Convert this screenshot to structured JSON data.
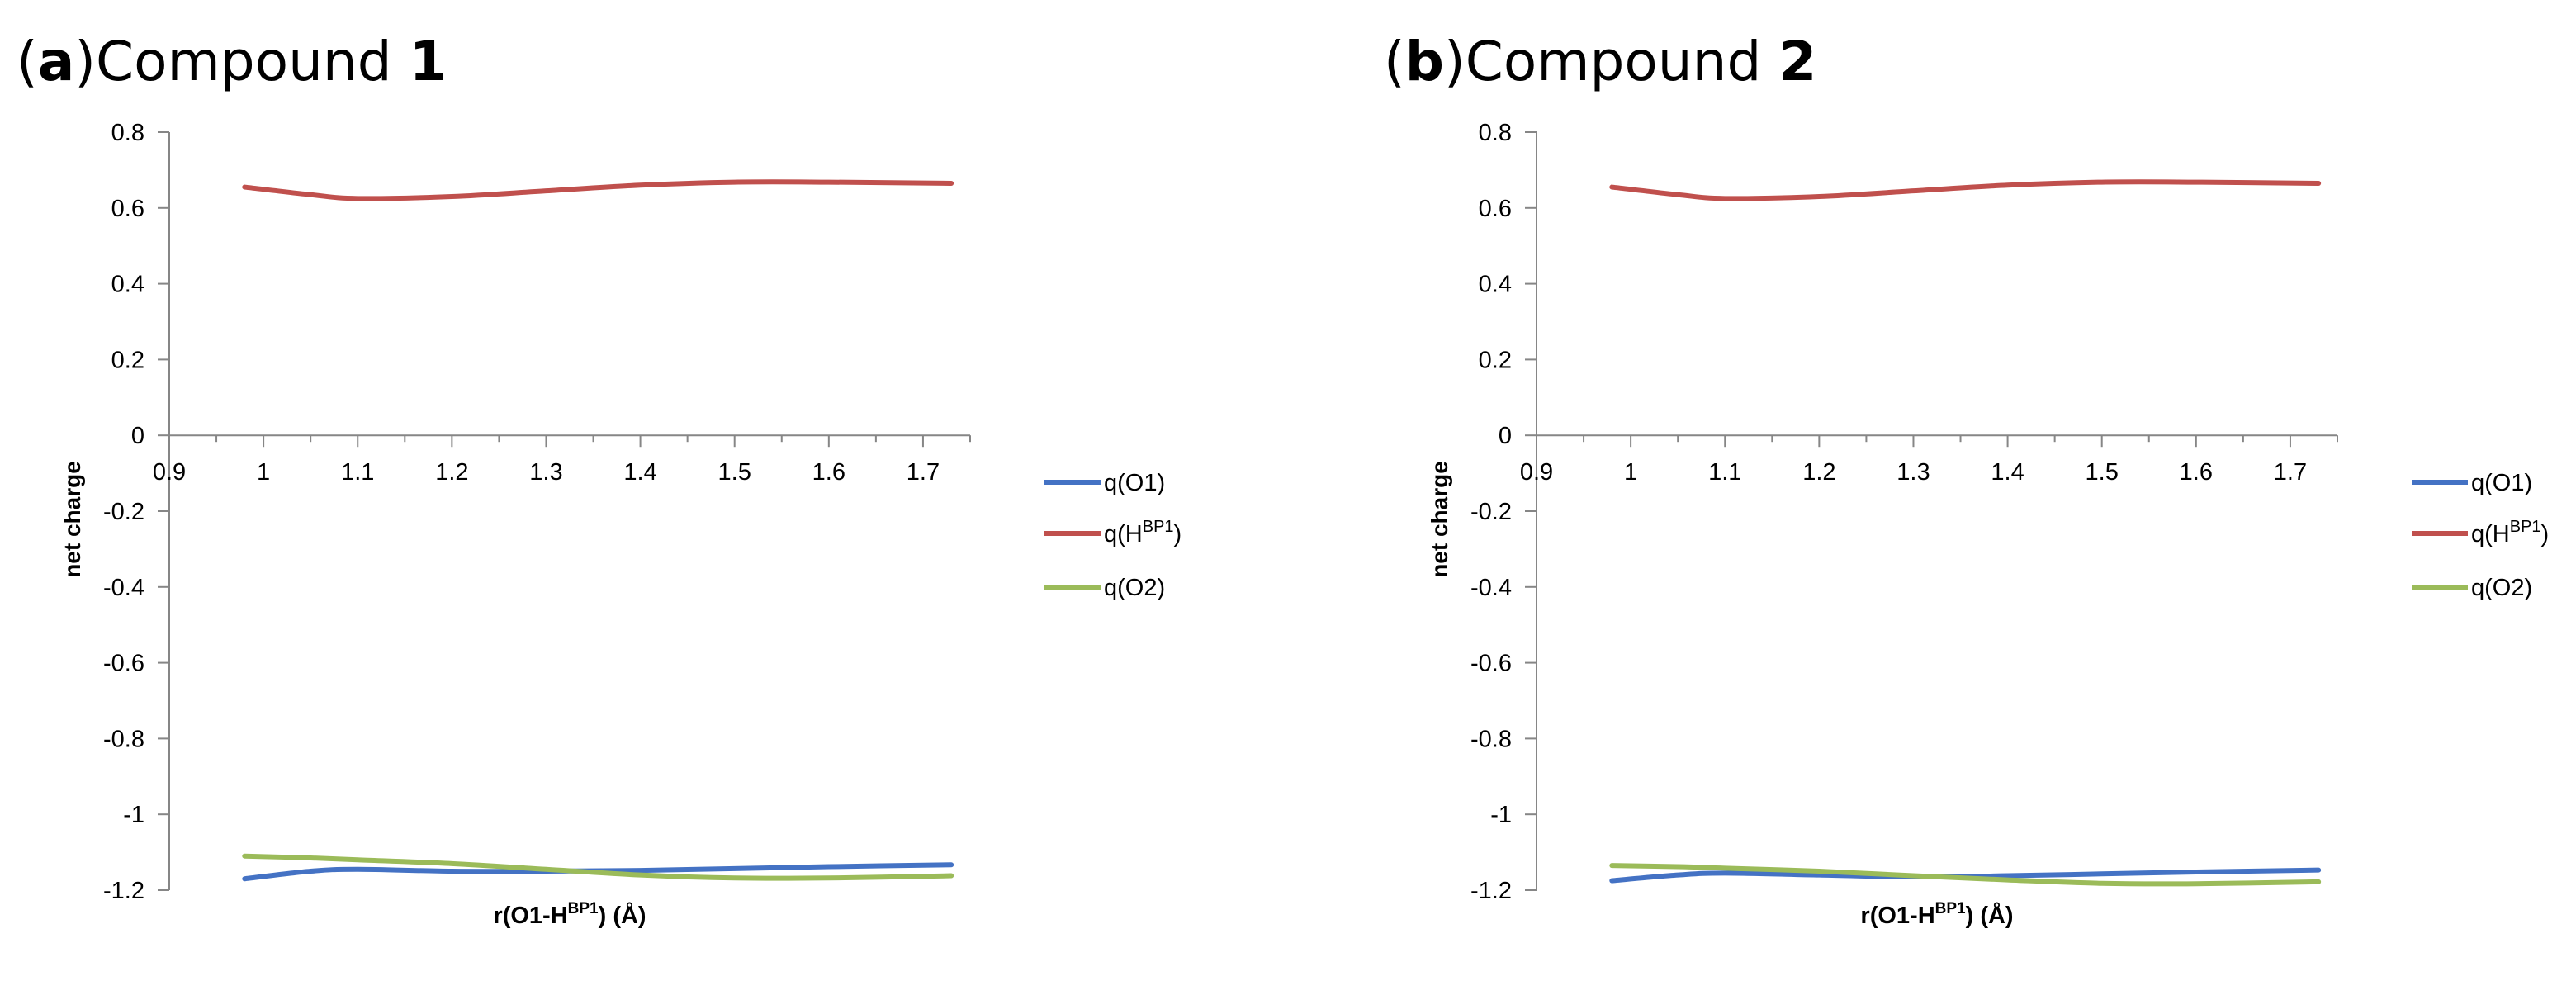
{
  "panels": [
    {
      "label": "a",
      "title_text": "Compound",
      "compound_number": "1"
    },
    {
      "label": "b",
      "title_text": "Compound",
      "compound_number": "2"
    }
  ],
  "chart_data": [
    {
      "type": "line",
      "title": "(a)Compound 1",
      "xlabel": "r(O1-H",
      "xlabel_sup": "BP1",
      "xlabel_tail": ") (Å)",
      "ylabel": "net charge",
      "xlim": [
        0.9,
        1.75
      ],
      "ylim": [
        -1.2,
        0.8
      ],
      "x_ticks": [
        0.9,
        1,
        1.1,
        1.2,
        1.3,
        1.4,
        1.5,
        1.6,
        1.7
      ],
      "x_tick_labels": [
        "0.9",
        "1",
        "1.1",
        "1.2",
        "1.3",
        "1.4",
        "1.5",
        "1.6",
        "1.7"
      ],
      "y_ticks": [
        0.8,
        0.6,
        0.4,
        0.2,
        0,
        -0.2,
        -0.4,
        -0.6,
        -0.8,
        -1,
        -1.2
      ],
      "y_tick_labels": [
        "0.8",
        "0.6",
        "0.4",
        "0.2",
        "0",
        "-0.2",
        "-0.4",
        "-0.6",
        "-0.8",
        "-1",
        "-1.2"
      ],
      "legend_position": "right",
      "series": [
        {
          "name": "q(O1)",
          "name_main": "q(O1",
          "name_sup": "",
          "name_tail": ")",
          "color": "#4472C4",
          "x": [
            0.98,
            1.05,
            1.1,
            1.2,
            1.3,
            1.4,
            1.5,
            1.6,
            1.73
          ],
          "y": [
            -1.17,
            -1.15,
            -1.145,
            -1.15,
            -1.15,
            -1.148,
            -1.143,
            -1.138,
            -1.133
          ]
        },
        {
          "name": "q(HBP1)",
          "name_main": "q(H",
          "name_sup": "BP1",
          "name_tail": ")",
          "color": "#C0504D",
          "x": [
            0.98,
            1.05,
            1.1,
            1.2,
            1.3,
            1.4,
            1.5,
            1.6,
            1.73
          ],
          "y": [
            0.655,
            0.635,
            0.625,
            0.63,
            0.645,
            0.66,
            0.668,
            0.668,
            0.665
          ]
        },
        {
          "name": "q(O2)",
          "name_main": "q(O2",
          "name_sup": "",
          "name_tail": ")",
          "color": "#9BBB59",
          "x": [
            0.98,
            1.05,
            1.1,
            1.2,
            1.3,
            1.4,
            1.5,
            1.6,
            1.73
          ],
          "y": [
            -1.11,
            -1.115,
            -1.12,
            -1.13,
            -1.145,
            -1.16,
            -1.168,
            -1.168,
            -1.162
          ]
        }
      ]
    },
    {
      "type": "line",
      "title": "(b)Compound 2",
      "xlabel": "r(O1-H",
      "xlabel_sup": "BP1",
      "xlabel_tail": ") (Å)",
      "ylabel": "net charge",
      "xlim": [
        0.9,
        1.75
      ],
      "ylim": [
        -1.2,
        0.8
      ],
      "x_ticks": [
        0.9,
        1,
        1.1,
        1.2,
        1.3,
        1.4,
        1.5,
        1.6,
        1.7
      ],
      "x_tick_labels": [
        "0.9",
        "1",
        "1.1",
        "1.2",
        "1.3",
        "1.4",
        "1.5",
        "1.6",
        "1.7"
      ],
      "y_ticks": [
        0.8,
        0.6,
        0.4,
        0.2,
        0,
        -0.2,
        -0.4,
        -0.6,
        -0.8,
        -1,
        -1.2
      ],
      "y_tick_labels": [
        "0.8",
        "0.6",
        "0.4",
        "0.2",
        "0",
        "-0.2",
        "-0.4",
        "-0.6",
        "-0.8",
        "-1",
        "-1.2"
      ],
      "legend_position": "right",
      "series": [
        {
          "name": "q(O1)",
          "name_main": "q(O1",
          "name_sup": "",
          "name_tail": ")",
          "color": "#4472C4",
          "x": [
            0.98,
            1.05,
            1.1,
            1.2,
            1.3,
            1.4,
            1.5,
            1.6,
            1.73
          ],
          "y": [
            -1.175,
            -1.16,
            -1.155,
            -1.16,
            -1.165,
            -1.162,
            -1.157,
            -1.152,
            -1.147
          ]
        },
        {
          "name": "q(HBP1)",
          "name_main": "q(H",
          "name_sup": "BP1",
          "name_tail": ")",
          "color": "#C0504D",
          "x": [
            0.98,
            1.05,
            1.1,
            1.2,
            1.3,
            1.4,
            1.5,
            1.6,
            1.73
          ],
          "y": [
            0.655,
            0.635,
            0.625,
            0.63,
            0.645,
            0.66,
            0.668,
            0.668,
            0.665
          ]
        },
        {
          "name": "q(O2)",
          "name_main": "q(O2",
          "name_sup": "",
          "name_tail": ")",
          "color": "#9BBB59",
          "x": [
            0.98,
            1.05,
            1.1,
            1.2,
            1.3,
            1.4,
            1.5,
            1.6,
            1.73
          ],
          "y": [
            -1.135,
            -1.138,
            -1.142,
            -1.15,
            -1.162,
            -1.173,
            -1.182,
            -1.183,
            -1.178
          ]
        }
      ]
    }
  ]
}
